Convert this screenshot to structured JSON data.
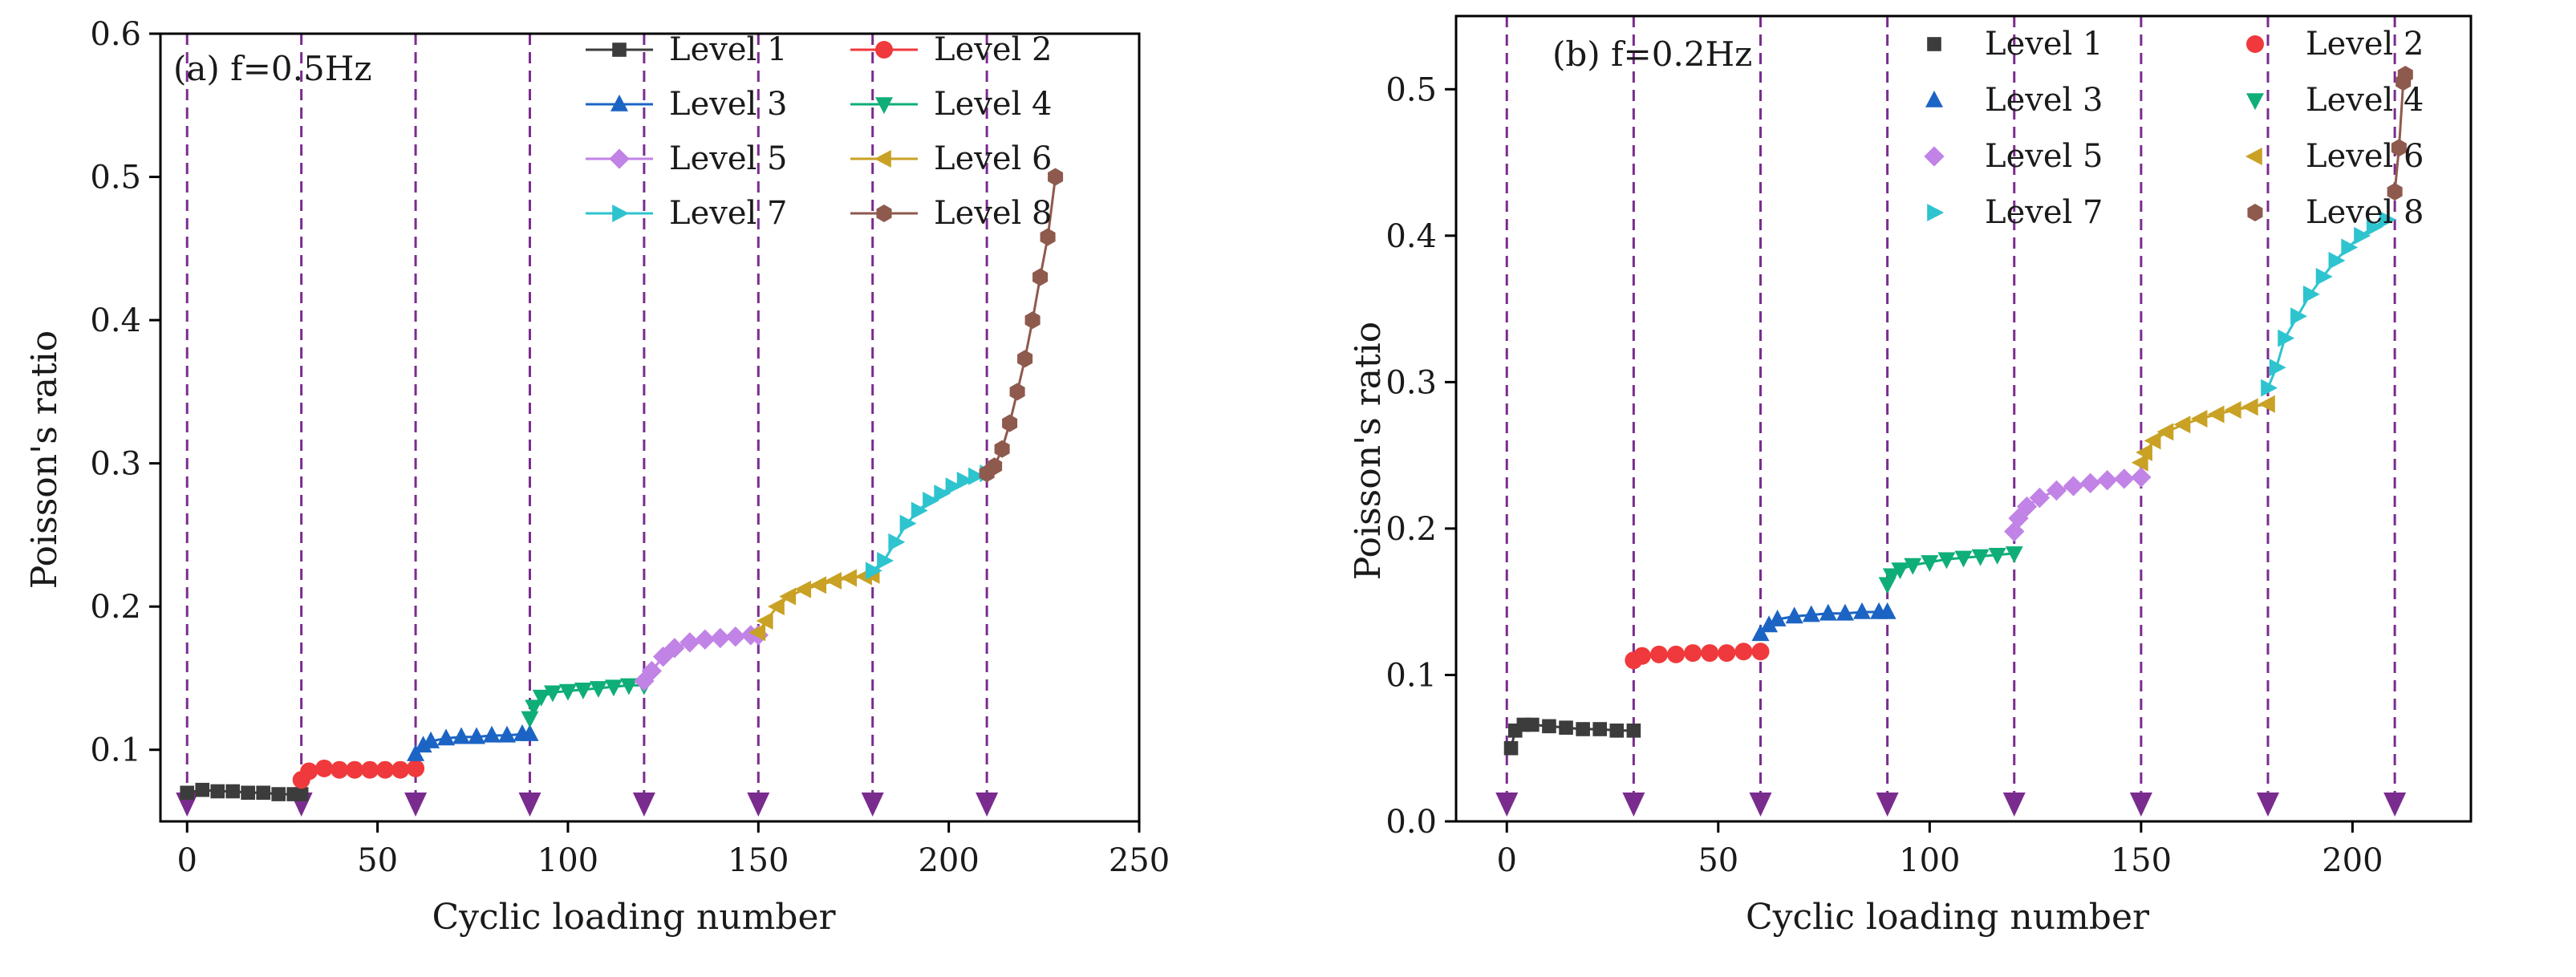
{
  "colors": {
    "Level 1": "#3c3c3c",
    "Level 2": "#f0393c",
    "Level 3": "#1b64c4",
    "Level 4": "#0fae78",
    "Level 5": "#c183e6",
    "Level 6": "#c9a124",
    "Level 7": "#2ec4cf",
    "Level 8": "#8e5a4d",
    "marker_line": "#7a2c8e"
  },
  "chart_data": [
    {
      "type": "scatter",
      "panel_label": "(a) f=0.5Hz",
      "xlabel": "Cyclic loading number",
      "ylabel": "Poisson's ratio",
      "xlim": [
        -7,
        250
      ],
      "ylim": [
        0.05,
        0.6
      ],
      "xticks": [
        0,
        50,
        100,
        150,
        200,
        250
      ],
      "xtick_labels": [
        "0",
        "50",
        "100",
        "150",
        "200",
        "250"
      ],
      "yticks": [
        0.1,
        0.2,
        0.3,
        0.4,
        0.5,
        0.6
      ],
      "ytick_labels": [
        "0.1",
        "0.2",
        "0.3",
        "0.4",
        "0.5",
        "0.6"
      ],
      "legend_position": "top-right",
      "legend_style": "line+marker",
      "level_boundaries": [
        0,
        30,
        60,
        90,
        120,
        150,
        180,
        210
      ],
      "series": [
        {
          "name": "Level 1",
          "marker": "square",
          "x": [
            0,
            4,
            8,
            12,
            16,
            20,
            24,
            28,
            30
          ],
          "y": [
            0.07,
            0.072,
            0.071,
            0.071,
            0.07,
            0.07,
            0.069,
            0.069,
            0.069
          ]
        },
        {
          "name": "Level 2",
          "marker": "circle",
          "x": [
            30,
            32,
            36,
            40,
            44,
            48,
            52,
            56,
            60
          ],
          "y": [
            0.079,
            0.085,
            0.087,
            0.086,
            0.086,
            0.086,
            0.086,
            0.086,
            0.087
          ]
        },
        {
          "name": "Level 3",
          "marker": "triangle-up",
          "x": [
            60,
            62,
            64,
            68,
            72,
            76,
            80,
            84,
            88,
            90
          ],
          "y": [
            0.097,
            0.103,
            0.106,
            0.108,
            0.109,
            0.109,
            0.11,
            0.11,
            0.111,
            0.111
          ]
        },
        {
          "name": "Level 4",
          "marker": "triangle-down",
          "x": [
            90,
            91,
            93,
            96,
            100,
            104,
            108,
            112,
            116,
            120
          ],
          "y": [
            0.122,
            0.13,
            0.137,
            0.14,
            0.141,
            0.142,
            0.143,
            0.144,
            0.145,
            0.145
          ]
        },
        {
          "name": "Level 5",
          "marker": "diamond",
          "x": [
            120,
            122,
            125,
            128,
            132,
            136,
            140,
            144,
            148,
            150
          ],
          "y": [
            0.148,
            0.155,
            0.165,
            0.171,
            0.175,
            0.177,
            0.178,
            0.179,
            0.18,
            0.18
          ]
        },
        {
          "name": "Level 6",
          "marker": "triangle-left",
          "x": [
            150,
            152,
            155,
            158,
            162,
            166,
            170,
            174,
            178,
            180
          ],
          "y": [
            0.182,
            0.19,
            0.2,
            0.207,
            0.212,
            0.215,
            0.218,
            0.22,
            0.221,
            0.222
          ]
        },
        {
          "name": "Level 7",
          "marker": "triangle-right",
          "x": [
            180,
            183,
            186,
            189,
            192,
            195,
            198,
            201,
            204,
            207,
            210
          ],
          "y": [
            0.225,
            0.232,
            0.245,
            0.258,
            0.267,
            0.274,
            0.279,
            0.284,
            0.288,
            0.291,
            0.293
          ]
        },
        {
          "name": "Level 8",
          "marker": "hexagon",
          "x": [
            210,
            212,
            214,
            216,
            218,
            220,
            222,
            224,
            226,
            228
          ],
          "y": [
            0.293,
            0.298,
            0.31,
            0.328,
            0.35,
            0.373,
            0.4,
            0.43,
            0.458,
            0.5
          ]
        }
      ]
    },
    {
      "type": "scatter",
      "panel_label": "(b) f=0.2Hz",
      "xlabel": "Cyclic loading number",
      "ylabel": "Poisson's ratio",
      "xlim": [
        -12,
        228
      ],
      "ylim": [
        0,
        0.55
      ],
      "xticks": [
        0,
        50,
        100,
        150,
        200
      ],
      "xtick_labels": [
        "0",
        "50",
        "100",
        "150",
        "200"
      ],
      "yticks": [
        0,
        0.1,
        0.2,
        0.3,
        0.4,
        0.5
      ],
      "ytick_labels": [
        "0.0",
        "0.1",
        "0.2",
        "0.3",
        "0.4",
        "0.5"
      ],
      "legend_position": "top-right",
      "legend_style": "marker",
      "level_boundaries": [
        0,
        30,
        60,
        90,
        120,
        150,
        180,
        210
      ],
      "series": [
        {
          "name": "Level 1",
          "marker": "square",
          "x": [
            1,
            2,
            4,
            6,
            10,
            14,
            18,
            22,
            26,
            30
          ],
          "y": [
            0.05,
            0.062,
            0.066,
            0.066,
            0.065,
            0.064,
            0.063,
            0.063,
            0.062,
            0.062
          ]
        },
        {
          "name": "Level 2",
          "marker": "circle",
          "x": [
            30,
            32,
            36,
            40,
            44,
            48,
            52,
            56,
            60
          ],
          "y": [
            0.11,
            0.113,
            0.114,
            0.114,
            0.115,
            0.115,
            0.115,
            0.116,
            0.116
          ]
        },
        {
          "name": "Level 3",
          "marker": "triangle-up",
          "x": [
            60,
            62,
            64,
            68,
            72,
            76,
            80,
            84,
            88,
            90
          ],
          "y": [
            0.128,
            0.134,
            0.138,
            0.14,
            0.141,
            0.142,
            0.142,
            0.143,
            0.143,
            0.143
          ]
        },
        {
          "name": "Level 4",
          "marker": "triangle-down",
          "x": [
            90,
            91,
            93,
            96,
            100,
            104,
            108,
            112,
            116,
            120
          ],
          "y": [
            0.162,
            0.168,
            0.172,
            0.175,
            0.177,
            0.179,
            0.18,
            0.181,
            0.182,
            0.183
          ]
        },
        {
          "name": "Level 5",
          "marker": "diamond",
          "x": [
            120,
            121,
            123,
            126,
            130,
            134,
            138,
            142,
            146,
            150
          ],
          "y": [
            0.198,
            0.207,
            0.215,
            0.221,
            0.226,
            0.229,
            0.231,
            0.233,
            0.234,
            0.235
          ]
        },
        {
          "name": "Level 6",
          "marker": "triangle-left",
          "x": [
            150,
            151,
            153,
            156,
            160,
            164,
            168,
            172,
            176,
            180
          ],
          "y": [
            0.245,
            0.252,
            0.26,
            0.266,
            0.271,
            0.275,
            0.278,
            0.281,
            0.283,
            0.285
          ]
        },
        {
          "name": "Level 7",
          "marker": "triangle-right",
          "x": [
            180,
            182,
            184,
            187,
            190,
            193,
            196,
            199,
            202,
            205,
            208
          ],
          "y": [
            0.296,
            0.31,
            0.33,
            0.345,
            0.36,
            0.372,
            0.383,
            0.392,
            0.4,
            0.406,
            0.411
          ]
        },
        {
          "name": "Level 8",
          "marker": "hexagon",
          "x": [
            210,
            211,
            212,
            212.5
          ],
          "y": [
            0.43,
            0.46,
            0.505,
            0.51
          ]
        }
      ]
    }
  ]
}
